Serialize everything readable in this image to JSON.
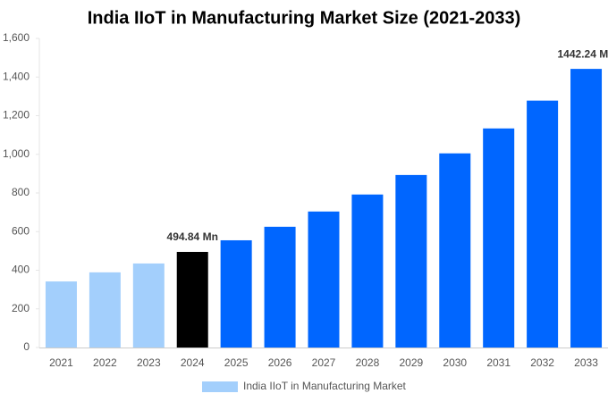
{
  "chart_data": {
    "type": "bar",
    "title": "India IIoT in Manufacturing Market Size (2021-2033)",
    "categories": [
      "2021",
      "2022",
      "2023",
      "2024",
      "2025",
      "2026",
      "2027",
      "2028",
      "2029",
      "2030",
      "2031",
      "2032",
      "2033"
    ],
    "series": [
      {
        "name": "India IIoT in Manufacturing Market",
        "color": "#a3cffc",
        "values": [
          342,
          389,
          435,
          494.84,
          555,
          625,
          704,
          792,
          893,
          1005,
          1134,
          1278,
          1442.24
        ],
        "colors": [
          "#a3cffc",
          "#a3cffc",
          "#a3cffc",
          "#000000",
          "#0066ff",
          "#0066ff",
          "#0066ff",
          "#0066ff",
          "#0066ff",
          "#0066ff",
          "#0066ff",
          "#0066ff",
          "#0066ff"
        ],
        "value_labels": [
          null,
          null,
          null,
          "494.84 Mn",
          null,
          null,
          null,
          null,
          null,
          null,
          null,
          null,
          "1442.24 Mn"
        ]
      }
    ],
    "ylim": [
      0,
      1600
    ],
    "yticks": [
      0,
      200,
      400,
      600,
      800,
      {
        "value": 1000,
        "label": "1,000"
      },
      {
        "value": 1200,
        "label": "1,200"
      },
      {
        "value": 1400,
        "label": "1,400"
      },
      {
        "value": 1600,
        "label": "1,600"
      }
    ],
    "legend": "bottom"
  }
}
